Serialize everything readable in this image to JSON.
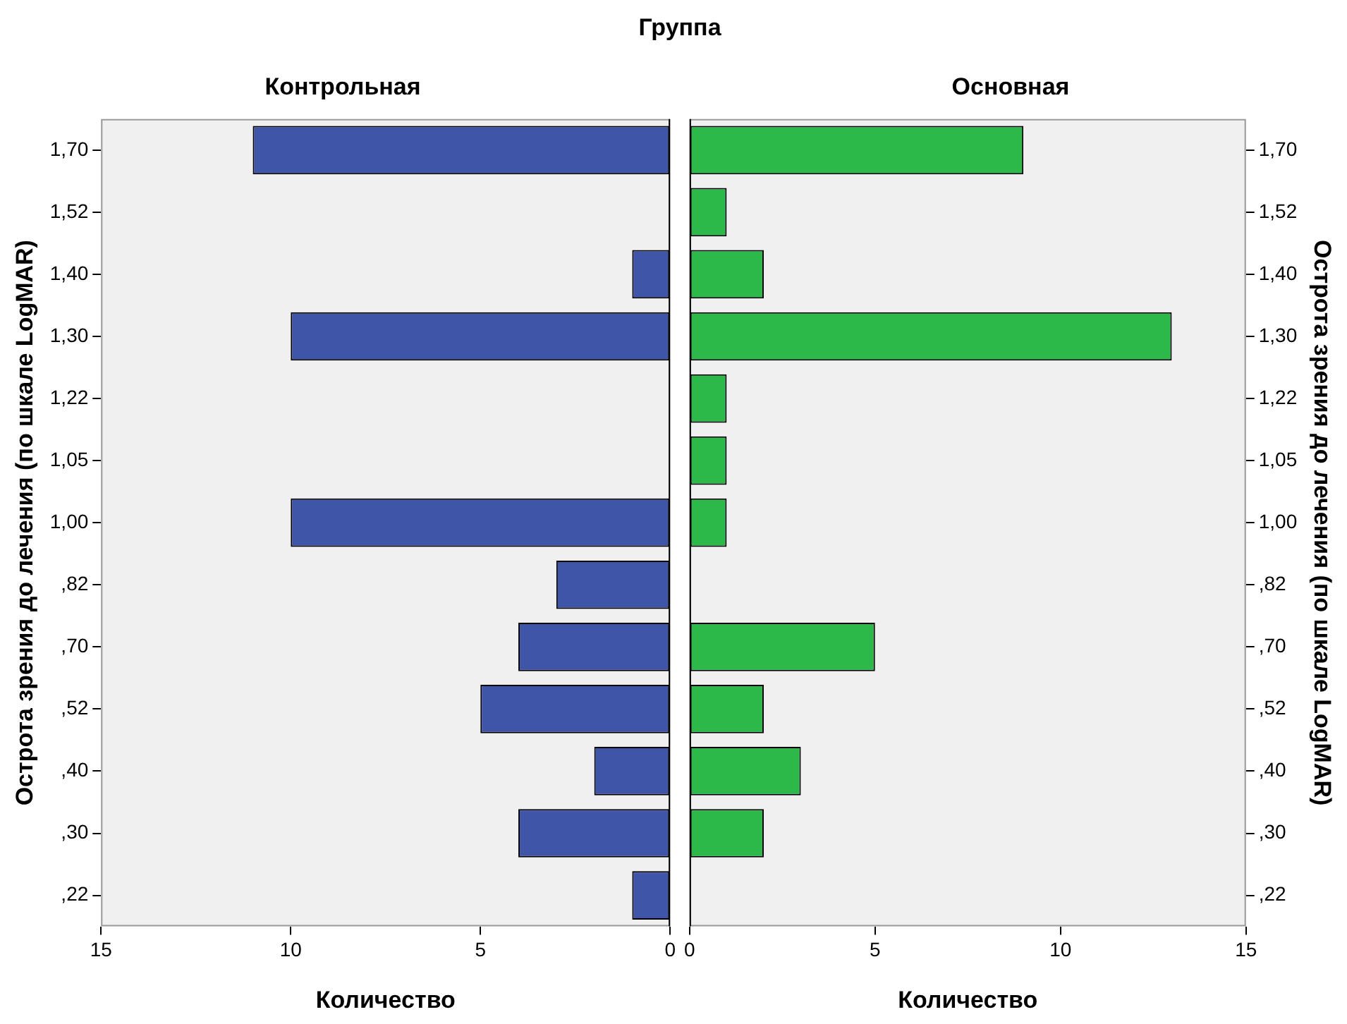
{
  "chart_data": [
    {
      "type": "bar",
      "orientation": "horizontal",
      "title": "Контрольная",
      "annotations": [
        "Группа"
      ],
      "xlabel": "Количество",
      "ylabel": "Острота зрения до лечения (по шкале LogMAR)",
      "categories": [
        "1,70",
        "1,52",
        "1,40",
        "1,30",
        "1,22",
        "1,05",
        "1,00",
        ",82",
        ",70",
        ",52",
        ",40",
        ",30",
        ",22"
      ],
      "values": [
        11,
        0,
        1,
        10,
        0,
        0,
        10,
        3,
        4,
        5,
        2,
        4,
        1
      ],
      "color": "#3f56a8",
      "xlim": [
        15,
        0
      ],
      "xticks": [
        15,
        10,
        5,
        0
      ],
      "grid": false
    },
    {
      "type": "bar",
      "orientation": "horizontal",
      "title": "Основная",
      "xlabel": "Количество",
      "ylabel": "Острота зрения до лечения (по шкале LogMAR)",
      "categories": [
        "1,70",
        "1,52",
        "1,40",
        "1,30",
        "1,22",
        "1,05",
        "1,00",
        ",82",
        ",70",
        ",52",
        ",40",
        ",30",
        ",22"
      ],
      "values": [
        9,
        1,
        2,
        13,
        1,
        1,
        1,
        0,
        5,
        2,
        3,
        2,
        0
      ],
      "color": "#2db84a",
      "xlim": [
        0,
        15
      ],
      "xticks": [
        0,
        5,
        10,
        15
      ],
      "grid": false
    }
  ]
}
